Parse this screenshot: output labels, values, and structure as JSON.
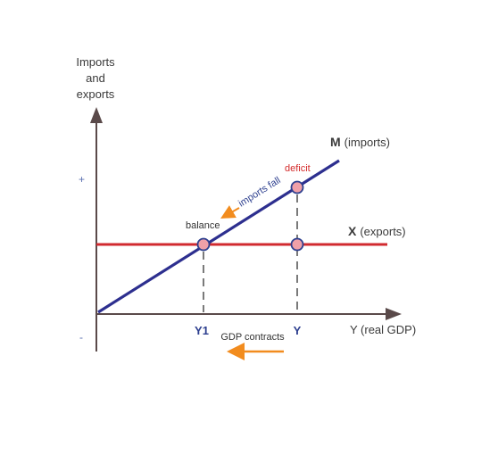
{
  "axes": {
    "y_title_lines": [
      "Imports",
      "and",
      "exports"
    ],
    "x_title": "Y (real GDP)",
    "plus_sign": "+",
    "minus_sign": "-"
  },
  "lines": {
    "imports": {
      "symbol": "M",
      "desc": "(imports)",
      "color": "#2d2f8f"
    },
    "exports": {
      "symbol": "X",
      "desc": "(exports)",
      "color": "#d12a2f"
    }
  },
  "points": {
    "balance_label": "balance",
    "deficit_label": "deficit",
    "point_fill": "#f0a0a8",
    "point_stroke": "#2d3f8f"
  },
  "ticks": {
    "y1": "Y1",
    "y": "Y"
  },
  "annotations": {
    "imports_fall": "imports fall",
    "gdp_contracts": "GDP contracts",
    "arrow_color": "#f28c1e"
  }
}
